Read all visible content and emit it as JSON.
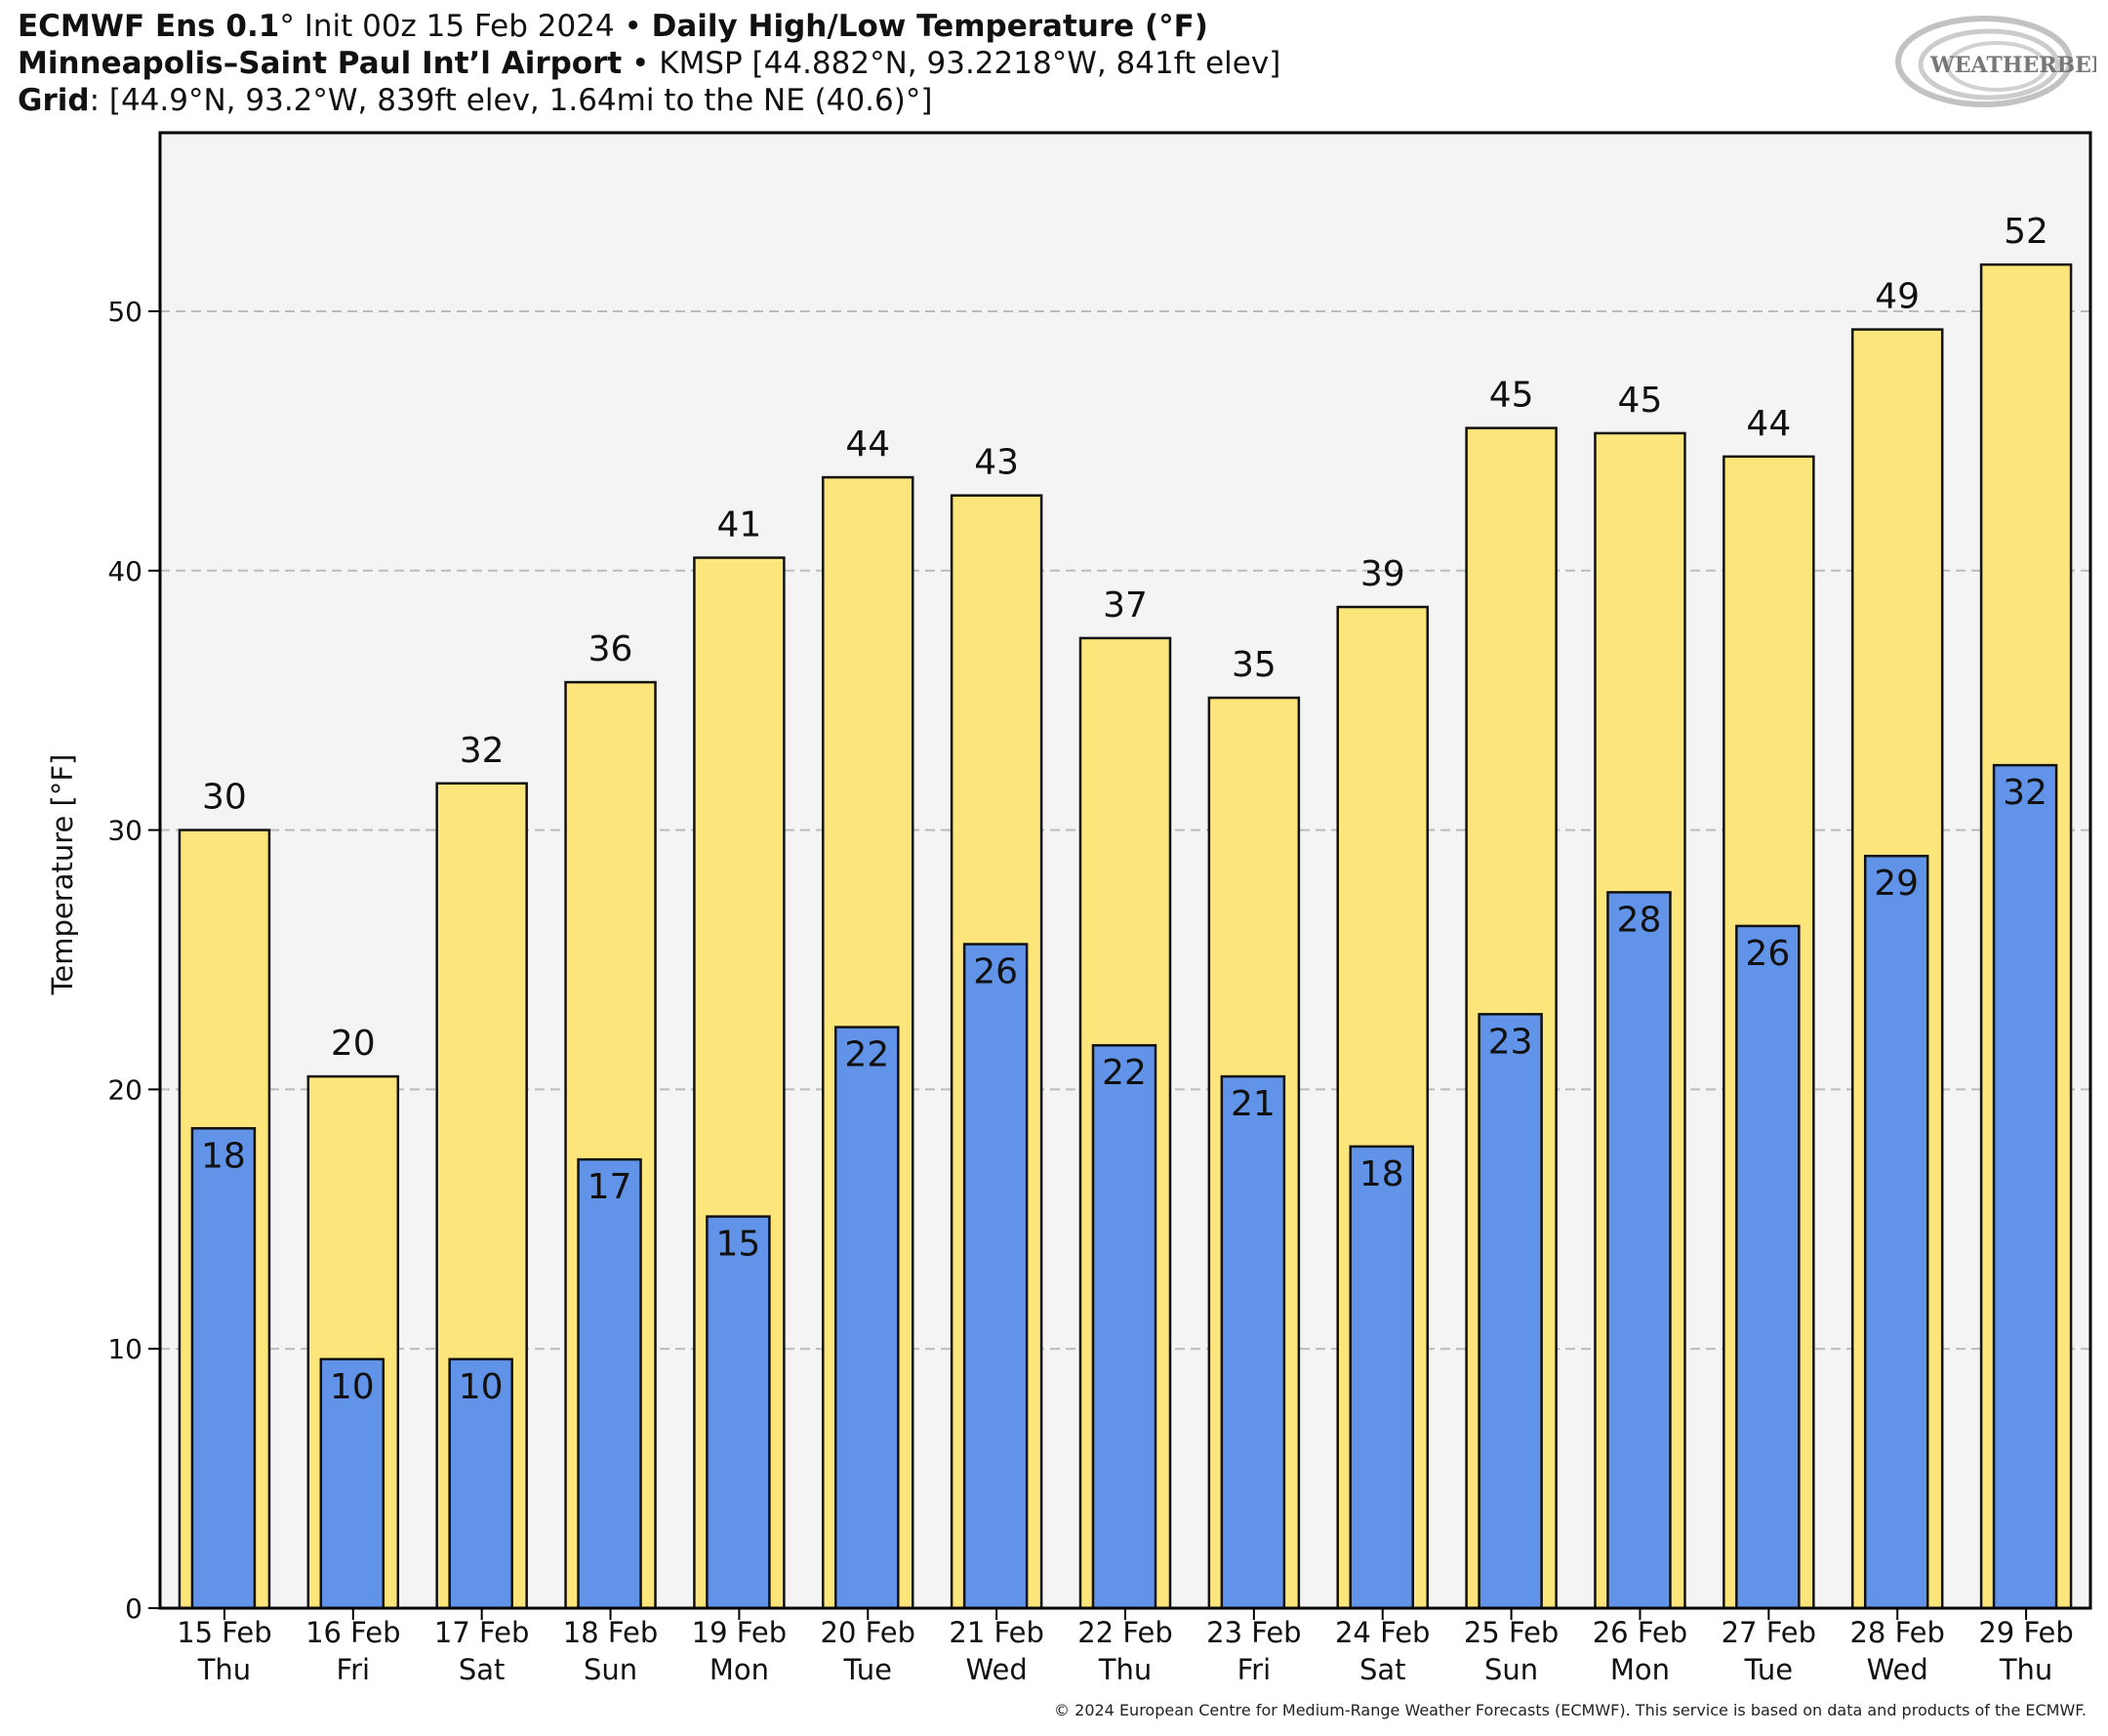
{
  "header": {
    "line1_model": "ECMWF Ens 0.1",
    "line1_deg": "°",
    "line1_init": "Init 00z 15 Feb 2024",
    "line1_sep": "•",
    "line1_product": "Daily High/Low Temperature (°F)",
    "line2_station": "Minneapolis–Saint Paul Int’l Airport",
    "line2_sep": "•",
    "line2_info": "KMSP [44.882°N, 93.2218°W, 841ft elev]",
    "line3_label": "Grid",
    "line3_info": ": [44.9°N, 93.2°W, 839ft elev, 1.64mi to the NE (40.6)°]"
  },
  "logo": {
    "text": "WEATHERBELL"
  },
  "copyright": "© 2024 European Centre for Medium-Range Weather Forecasts (ECMWF). This service is based on data and products of the ECMWF.",
  "colors": {
    "high": "#FCE57A",
    "low": "#6194E8",
    "plot_bg": "#F4F4F4",
    "grid": "#BBBBBB"
  },
  "chart_data": {
    "type": "bar",
    "ylabel": "Temperature [°F]",
    "ylim": [
      0,
      57
    ],
    "yticks": [
      0,
      10,
      20,
      30,
      40,
      50
    ],
    "grid": true,
    "categories": [
      {
        "date": "15 Feb",
        "day": "Thu"
      },
      {
        "date": "16 Feb",
        "day": "Fri"
      },
      {
        "date": "17 Feb",
        "day": "Sat"
      },
      {
        "date": "18 Feb",
        "day": "Sun"
      },
      {
        "date": "19 Feb",
        "day": "Mon"
      },
      {
        "date": "20 Feb",
        "day": "Tue"
      },
      {
        "date": "21 Feb",
        "day": "Wed"
      },
      {
        "date": "22 Feb",
        "day": "Thu"
      },
      {
        "date": "23 Feb",
        "day": "Fri"
      },
      {
        "date": "24 Feb",
        "day": "Sat"
      },
      {
        "date": "25 Feb",
        "day": "Sun"
      },
      {
        "date": "26 Feb",
        "day": "Mon"
      },
      {
        "date": "27 Feb",
        "day": "Tue"
      },
      {
        "date": "28 Feb",
        "day": "Wed"
      },
      {
        "date": "29 Feb",
        "day": "Thu"
      }
    ],
    "series": [
      {
        "key": "high",
        "values": [
          30.0,
          20.5,
          31.8,
          35.7,
          40.5,
          43.6,
          42.9,
          37.4,
          35.1,
          38.6,
          45.5,
          45.3,
          44.4,
          49.3,
          51.8
        ],
        "labels": [
          "30",
          "20",
          "32",
          "36",
          "41",
          "44",
          "43",
          "37",
          "35",
          "39",
          "45",
          "45",
          "44",
          "49",
          "52"
        ]
      },
      {
        "key": "low",
        "values": [
          18.5,
          9.6,
          9.6,
          17.3,
          15.1,
          22.4,
          25.6,
          21.7,
          20.5,
          17.8,
          22.9,
          27.6,
          26.3,
          29.0,
          32.5
        ],
        "labels": [
          "18",
          "10",
          "10",
          "17",
          "15",
          "22",
          "26",
          "22",
          "21",
          "18",
          "23",
          "28",
          "26",
          "29",
          "32"
        ]
      }
    ]
  }
}
